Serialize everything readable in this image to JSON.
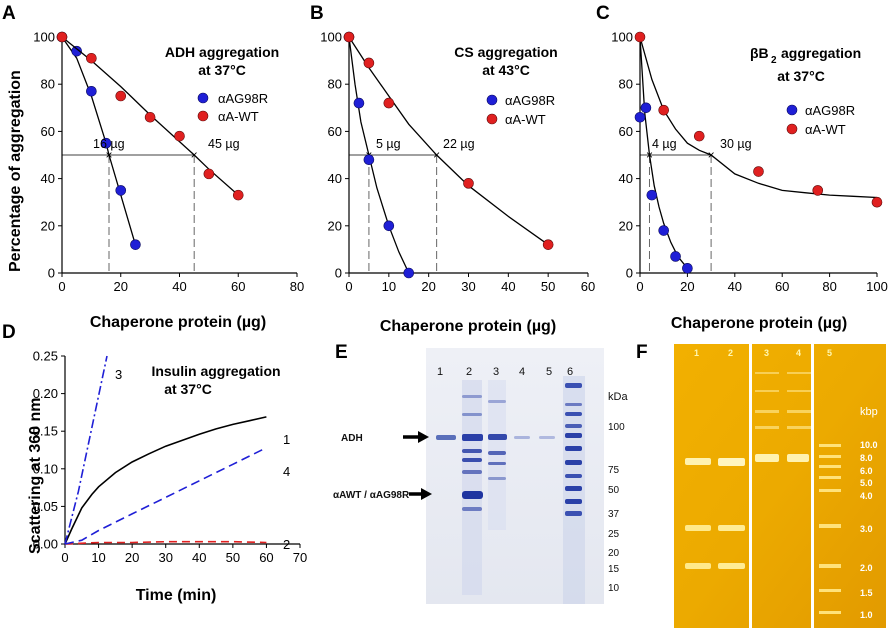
{
  "chart_data": [
    {
      "id": "A",
      "type": "scatter",
      "title_lines": [
        "ADH aggregation",
        "at 37°C"
      ],
      "xlabel": "Chaperone protein (µg)",
      "ylabel": "Percentage of aggregation",
      "xlim": [
        0,
        80
      ],
      "ylim": [
        0,
        100
      ],
      "xticks": [
        0,
        20,
        40,
        60,
        80
      ],
      "yticks": [
        0,
        20,
        40,
        60,
        80,
        100
      ],
      "series": [
        {
          "name": "αAG98R",
          "color": "#1f1fd6",
          "x": [
            0,
            5,
            10,
            15,
            20,
            25
          ],
          "y": [
            100,
            94,
            77,
            55,
            35,
            12
          ],
          "fit_x": [
            0,
            5,
            10,
            15,
            16,
            20,
            25
          ],
          "fit_y": [
            100,
            91,
            75,
            55,
            50,
            33,
            12
          ]
        },
        {
          "name": "αA-WT",
          "color": "#e02020",
          "x": [
            0,
            10,
            20,
            30,
            40,
            50,
            60
          ],
          "y": [
            100,
            91,
            75,
            66,
            58,
            42,
            33
          ],
          "fit_x": [
            0,
            10,
            20,
            30,
            45,
            50,
            60
          ],
          "fit_y": [
            100,
            90,
            79,
            67,
            50,
            44,
            33
          ]
        }
      ],
      "annotations": [
        {
          "text": "16 µg",
          "x": 16
        },
        {
          "text": "45 µg",
          "x": 45
        }
      ]
    },
    {
      "id": "B",
      "type": "scatter",
      "title_lines": [
        "CS aggregation",
        "at 43°C"
      ],
      "xlabel": "Chaperone protein (µg)",
      "ylabel": "",
      "xlim": [
        0,
        60
      ],
      "ylim": [
        0,
        100
      ],
      "xticks": [
        0,
        10,
        20,
        30,
        40,
        50,
        60
      ],
      "yticks": [
        0,
        20,
        40,
        60,
        80,
        100
      ],
      "series": [
        {
          "name": "αAG98R",
          "color": "#1f1fd6",
          "x": [
            0,
            2.5,
            5,
            10,
            15
          ],
          "y": [
            100,
            72,
            48,
            20,
            0
          ],
          "fit_x": [
            0,
            1.5,
            3,
            5,
            7,
            10,
            12.5,
            15
          ],
          "fit_y": [
            100,
            80,
            64,
            50,
            36,
            20,
            9,
            0
          ]
        },
        {
          "name": "αA-WT",
          "color": "#e02020",
          "x": [
            0,
            5,
            10,
            30,
            50
          ],
          "y": [
            100,
            89,
            72,
            38,
            12
          ],
          "fit_x": [
            0,
            5,
            10,
            15,
            22,
            30,
            40,
            50
          ],
          "fit_y": [
            100,
            87,
            75,
            63,
            50,
            37,
            24,
            12
          ]
        }
      ],
      "annotations": [
        {
          "text": "5 µg",
          "x": 5
        },
        {
          "text": "22 µg",
          "x": 22
        }
      ]
    },
    {
      "id": "C",
      "type": "scatter",
      "title_lines": [
        "βB",
        "aggregation",
        "at 37°C"
      ],
      "title_sub": "2",
      "xlabel": "Chaperone protein (µg)",
      "ylabel": "",
      "xlim": [
        0,
        100
      ],
      "ylim": [
        0,
        100
      ],
      "xticks": [
        0,
        20,
        40,
        60,
        80,
        100
      ],
      "yticks": [
        0,
        20,
        40,
        60,
        80,
        100
      ],
      "series": [
        {
          "name": "αAG98R",
          "color": "#1f1fd6",
          "x": [
            0,
            2.5,
            5,
            10,
            15,
            20
          ],
          "y": [
            66,
            70,
            33,
            18,
            7,
            2
          ],
          "fit_x": [
            0,
            2,
            4,
            6,
            8,
            10,
            13,
            16,
            20
          ],
          "fit_y": [
            100,
            68,
            50,
            37,
            28,
            21,
            13,
            7,
            2
          ]
        },
        {
          "name": "αA-WT",
          "color": "#e02020",
          "x": [
            0,
            10,
            25,
            50,
            75,
            100
          ],
          "y": [
            100,
            69,
            58,
            43,
            35,
            30
          ],
          "fit_x": [
            0,
            5,
            10,
            15,
            20,
            25,
            30,
            40,
            50,
            60,
            70,
            80,
            90,
            100
          ],
          "fit_y": [
            100,
            82,
            69,
            61,
            55,
            52,
            50,
            42,
            38,
            35,
            34,
            33,
            32.5,
            32
          ]
        }
      ],
      "annotations": [
        {
          "text": "4 µg",
          "x": 4
        },
        {
          "text": "30 µg",
          "x": 30
        }
      ]
    },
    {
      "id": "D",
      "type": "line",
      "title_lines": [
        "Insulin aggregation",
        "at 37°C"
      ],
      "xlabel": "Time (min)",
      "ylabel": "Scattering at 360 nm",
      "xlim": [
        0,
        70
      ],
      "ylim": [
        0,
        0.25
      ],
      "xticks": [
        0,
        10,
        20,
        30,
        40,
        50,
        60,
        70
      ],
      "yticks": [
        0.0,
        0.05,
        0.1,
        0.15,
        0.2,
        0.25
      ],
      "ytick_labels": [
        "0.00",
        "0.05",
        "0.10",
        "0.15",
        "0.20",
        "0.25"
      ],
      "series": [
        {
          "name": "1",
          "color": "#000000",
          "dash": "",
          "x": [
            0,
            2,
            5,
            8,
            10,
            15,
            20,
            25,
            30,
            35,
            40,
            45,
            50,
            55,
            60
          ],
          "y": [
            0,
            0.02,
            0.048,
            0.066,
            0.076,
            0.095,
            0.109,
            0.12,
            0.13,
            0.138,
            0.146,
            0.153,
            0.159,
            0.164,
            0.169
          ]
        },
        {
          "name": "2",
          "color": "#e02020",
          "dash": "8 5",
          "x": [
            0,
            10,
            20,
            30,
            40,
            50,
            60
          ],
          "y": [
            0,
            0.002,
            0.002,
            0.003,
            0.003,
            0.003,
            0.002
          ]
        },
        {
          "name": "3",
          "color": "#1f1fd6",
          "dash": "9 3 2 3",
          "x": [
            0,
            4,
            8,
            12.5
          ],
          "y": [
            0,
            0.07,
            0.155,
            0.25
          ]
        },
        {
          "name": "4",
          "color": "#1f1fd6",
          "dash": "9 5",
          "x": [
            0,
            5,
            10,
            20,
            30,
            40,
            50,
            60
          ],
          "y": [
            0,
            0.005,
            0.018,
            0.04,
            0.062,
            0.084,
            0.106,
            0.128
          ]
        }
      ]
    }
  ],
  "panels": {
    "labels": [
      "A",
      "B",
      "C",
      "D",
      "E",
      "F"
    ]
  },
  "gelE": {
    "lanes": [
      "1",
      "2",
      "3",
      "4",
      "5",
      "6"
    ],
    "unit": "kDa",
    "markers": [
      "100",
      "75",
      "50",
      "37",
      "25",
      "20",
      "15",
      "10"
    ],
    "band_labels": [
      "ADH",
      "αAWT / αAG98R"
    ]
  },
  "gelF": {
    "lanes": [
      "1",
      "2",
      "3",
      "4",
      "5"
    ],
    "unit": "kbp",
    "markers": [
      "10.0",
      "8.0",
      "6.0",
      "5.0",
      "4.0",
      "3.0",
      "2.0",
      "1.5",
      "1.0"
    ]
  }
}
